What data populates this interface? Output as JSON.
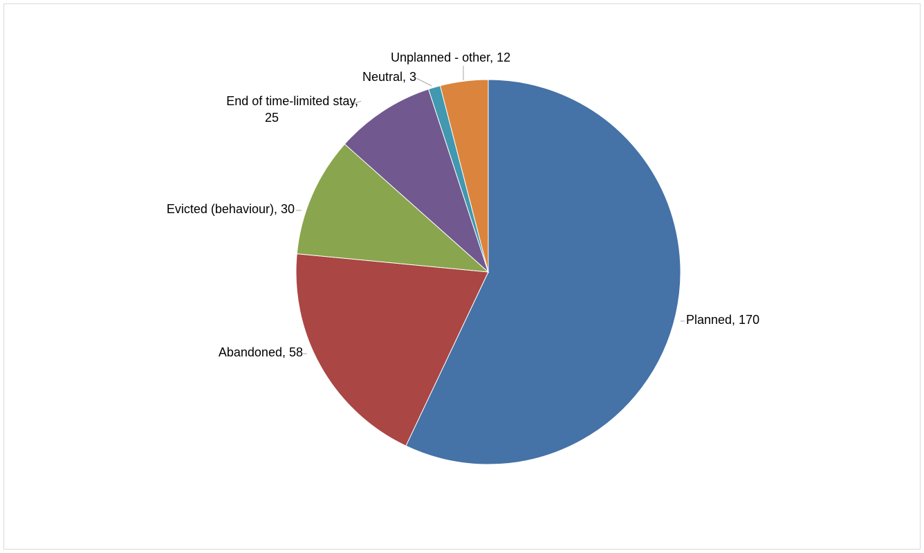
{
  "chart_data": {
    "type": "pie",
    "title": "",
    "slices": [
      {
        "label": "Planned",
        "value": 170,
        "color": "#4572A7",
        "display": [
          "Planned, 170"
        ]
      },
      {
        "label": "Abandoned",
        "value": 58,
        "color": "#AA4643",
        "display": [
          "Abandoned, 58"
        ]
      },
      {
        "label": "Evicted (behaviour)",
        "value": 30,
        "color": "#89A54E",
        "display": [
          "Evicted (behaviour), 30"
        ]
      },
      {
        "label": "End of time-limited stay",
        "value": 25,
        "color": "#71588F",
        "display": [
          "End of time-limited stay,",
          "25"
        ]
      },
      {
        "label": "Neutral",
        "value": 3,
        "color": "#4198AF",
        "display": [
          "Neutral, 3"
        ]
      },
      {
        "label": "Unplanned - other",
        "value": 12,
        "color": "#DB843D",
        "display": [
          "Unplanned - other, 12"
        ]
      }
    ],
    "start_angle": "12 o'clock",
    "direction": "clockwise",
    "legend": "none",
    "data_labels": "outside with leader lines"
  }
}
